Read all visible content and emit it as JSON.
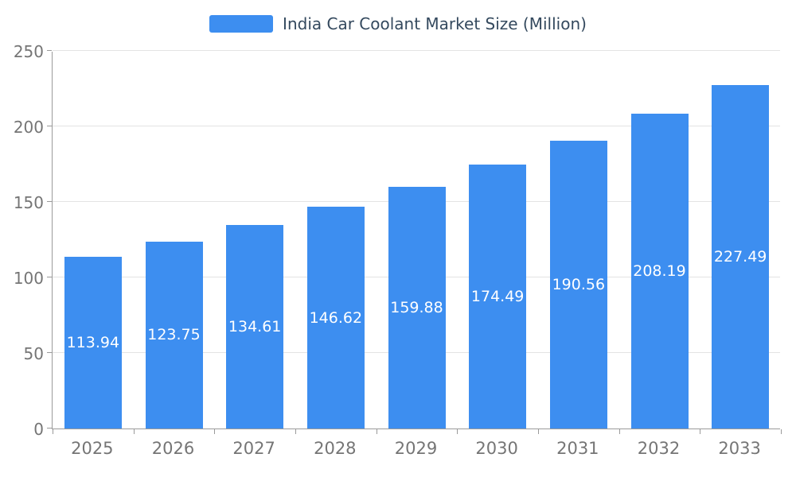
{
  "chart_data": {
    "type": "bar",
    "title": "India Car Coolant Market Size (Million)",
    "categories": [
      "2025",
      "2026",
      "2027",
      "2028",
      "2029",
      "2030",
      "2031",
      "2032",
      "2033"
    ],
    "values": [
      113.94,
      123.75,
      134.61,
      146.62,
      159.88,
      174.49,
      190.56,
      208.19,
      227.49
    ],
    "xlabel": "",
    "ylabel": "",
    "ylim": [
      0,
      250
    ],
    "yticks": [
      0,
      50,
      100,
      150,
      200,
      250
    ],
    "grid": true,
    "legend_position": "top-center",
    "bar_color": "#3d8ef0",
    "value_label_color": "#ffffff",
    "axis_label_color": "#757575",
    "title_color": "#34495e"
  }
}
